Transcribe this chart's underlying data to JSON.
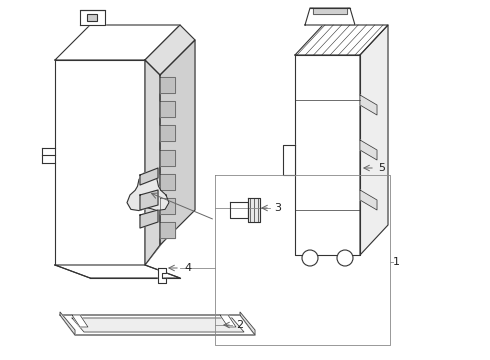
{
  "background_color": "#ffffff",
  "line_color": "#333333",
  "line_width": 0.8,
  "callout_color": "#555555",
  "callout_fontsize": 8
}
